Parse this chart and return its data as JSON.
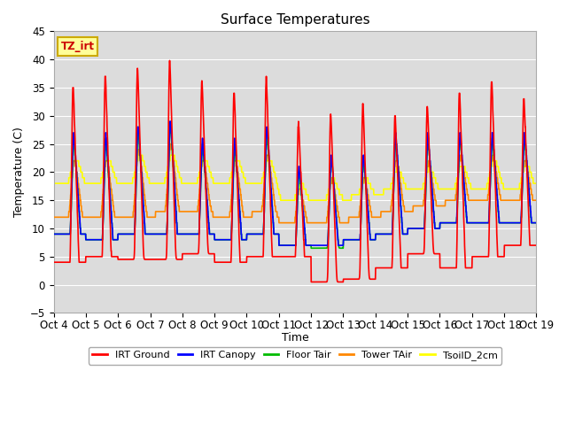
{
  "title": "Surface Temperatures",
  "xlabel": "Time",
  "ylabel": "Temperature (C)",
  "ylim": [
    -5,
    45
  ],
  "background_color": "#dcdcdc",
  "grid_color": "#ffffff",
  "annotation_text": "TZ_irt",
  "annotation_bg": "#ffff99",
  "annotation_border": "#ccaa00",
  "x_tick_labels": [
    "Oct 4",
    "Oct 5",
    "Oct 6",
    "Oct 7",
    "Oct 8",
    "Oct 9",
    "Oct 10",
    "Oct 11",
    "Oct 12",
    "Oct 13",
    "Oct 14",
    "Oct 15",
    "Oct 16",
    "Oct 17",
    "Oct 18",
    "Oct 19"
  ],
  "legend_entries": [
    {
      "label": "IRT Ground",
      "color": "#ff0000"
    },
    {
      "label": "IRT Canopy",
      "color": "#0000ff"
    },
    {
      "label": "Floor Tair",
      "color": "#00bb00"
    },
    {
      "label": "Tower TAir",
      "color": "#ff8800"
    },
    {
      "label": "TsoilD_2cm",
      "color": "#ffff00"
    }
  ],
  "line_width": 1.2,
  "series_colors": {
    "IRT_Ground": "#ff0000",
    "IRT_Canopy": "#0000ff",
    "Floor_Tair": "#00bb00",
    "Tower_TAir": "#ff8800",
    "TsoilD_2cm": "#ffff00"
  }
}
